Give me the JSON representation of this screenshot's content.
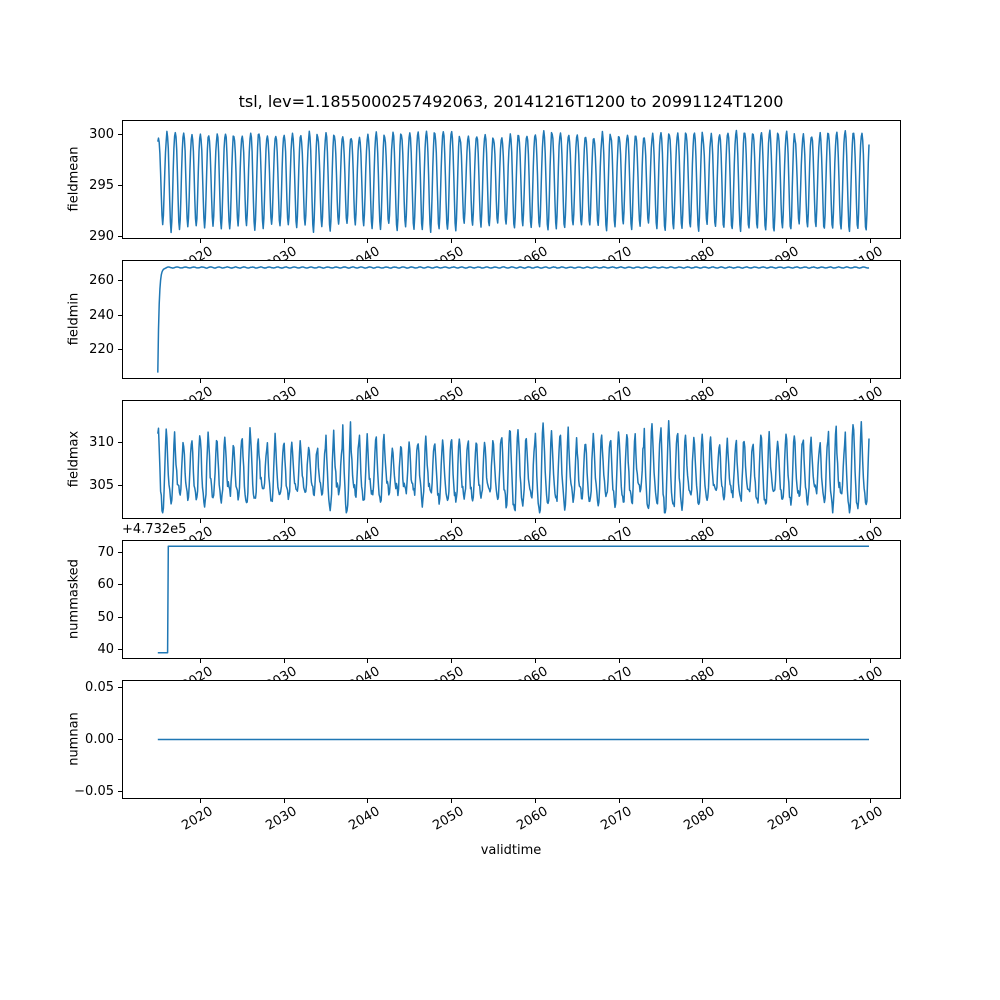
{
  "figure": {
    "title": "tsl, lev=1.1855000257492063, 20141216T1200 to 20991124T1200",
    "xlabel": "validtime",
    "line_color": "#1f77b4",
    "background": "#ffffff",
    "xticks": [
      2020,
      2030,
      2040,
      2050,
      2060,
      2070,
      2080,
      2090,
      2100
    ],
    "xticklabels": [
      "2020",
      "2030",
      "2040",
      "2050",
      "2060",
      "2070",
      "2080",
      "2090",
      "2100"
    ],
    "xlim": [
      2010.8,
      2103.6
    ],
    "time_range": [
      2014.96,
      2099.9
    ],
    "samples_per_year": 12
  },
  "chart_data": [
    {
      "type": "line",
      "ylabel": "fieldmean",
      "yticks": [
        290,
        295,
        300
      ],
      "yticklabels": [
        "290",
        "295",
        "300"
      ],
      "ylim": [
        289.9,
        301.3
      ],
      "legend": "none",
      "series": {
        "name": "fieldmean",
        "pattern": "annual-oscillation",
        "mean": 295.9,
        "amp_base": 4.15,
        "amp_jitter": 0.75,
        "second_harmonic": -0.45,
        "noise": 0.3,
        "peak_year_fraction": 0.04,
        "value_min": 290.4,
        "value_max": 300.8,
        "start_value": 299.6
      }
    },
    {
      "type": "line",
      "ylabel": "fieldmin",
      "yticks": [
        220,
        240,
        260
      ],
      "yticklabels": [
        "220",
        "240",
        "260"
      ],
      "ylim": [
        203.8,
        271.3
      ],
      "legend": "none",
      "series": {
        "name": "fieldmin",
        "pattern": "rapid-rise-then-plateau",
        "start_value": 207,
        "plateau": 267.55,
        "rise_efold_years": 0.16,
        "wiggle_amp": 0.3,
        "noise": 0.12
      }
    },
    {
      "type": "line",
      "ylabel": "fieldmax",
      "yticks": [
        305,
        310
      ],
      "yticklabels": [
        "305",
        "310"
      ],
      "ylim": [
        301.3,
        314.8
      ],
      "legend": "none",
      "series": {
        "name": "fieldmax",
        "pattern": "annual-oscillation-noisy",
        "mean": 306.4,
        "amp_base": 2.3,
        "amp_jitter": 1.7,
        "spike_prob": 0.18,
        "spike_boost": 1.3,
        "second_harmonic": 0.8,
        "phase_offset": 0.22,
        "noise": 1.1,
        "value_min": 301.9,
        "value_max": 314.2
      }
    },
    {
      "type": "line",
      "ylabel": "nummasked",
      "offset_text": "+4.732e5",
      "yticks": [
        40,
        50,
        60,
        70
      ],
      "yticklabels": [
        "40",
        "50",
        "60",
        "70"
      ],
      "ylim": [
        37.35,
        73.65
      ],
      "legend": "none",
      "series": {
        "name": "nummasked",
        "pattern": "step",
        "initial_display": 39,
        "final_display": 72,
        "initial_actual": 473239,
        "final_actual": 473272,
        "step_year": 2016.2
      }
    },
    {
      "type": "line",
      "ylabel": "numnan",
      "yticks": [
        -0.05,
        0,
        0.05
      ],
      "yticklabels": [
        "−0.05",
        "0.00",
        "0.05"
      ],
      "ylim": [
        -0.056,
        0.056
      ],
      "legend": "none",
      "series": {
        "name": "numnan",
        "pattern": "constant",
        "value": 0
      }
    }
  ]
}
